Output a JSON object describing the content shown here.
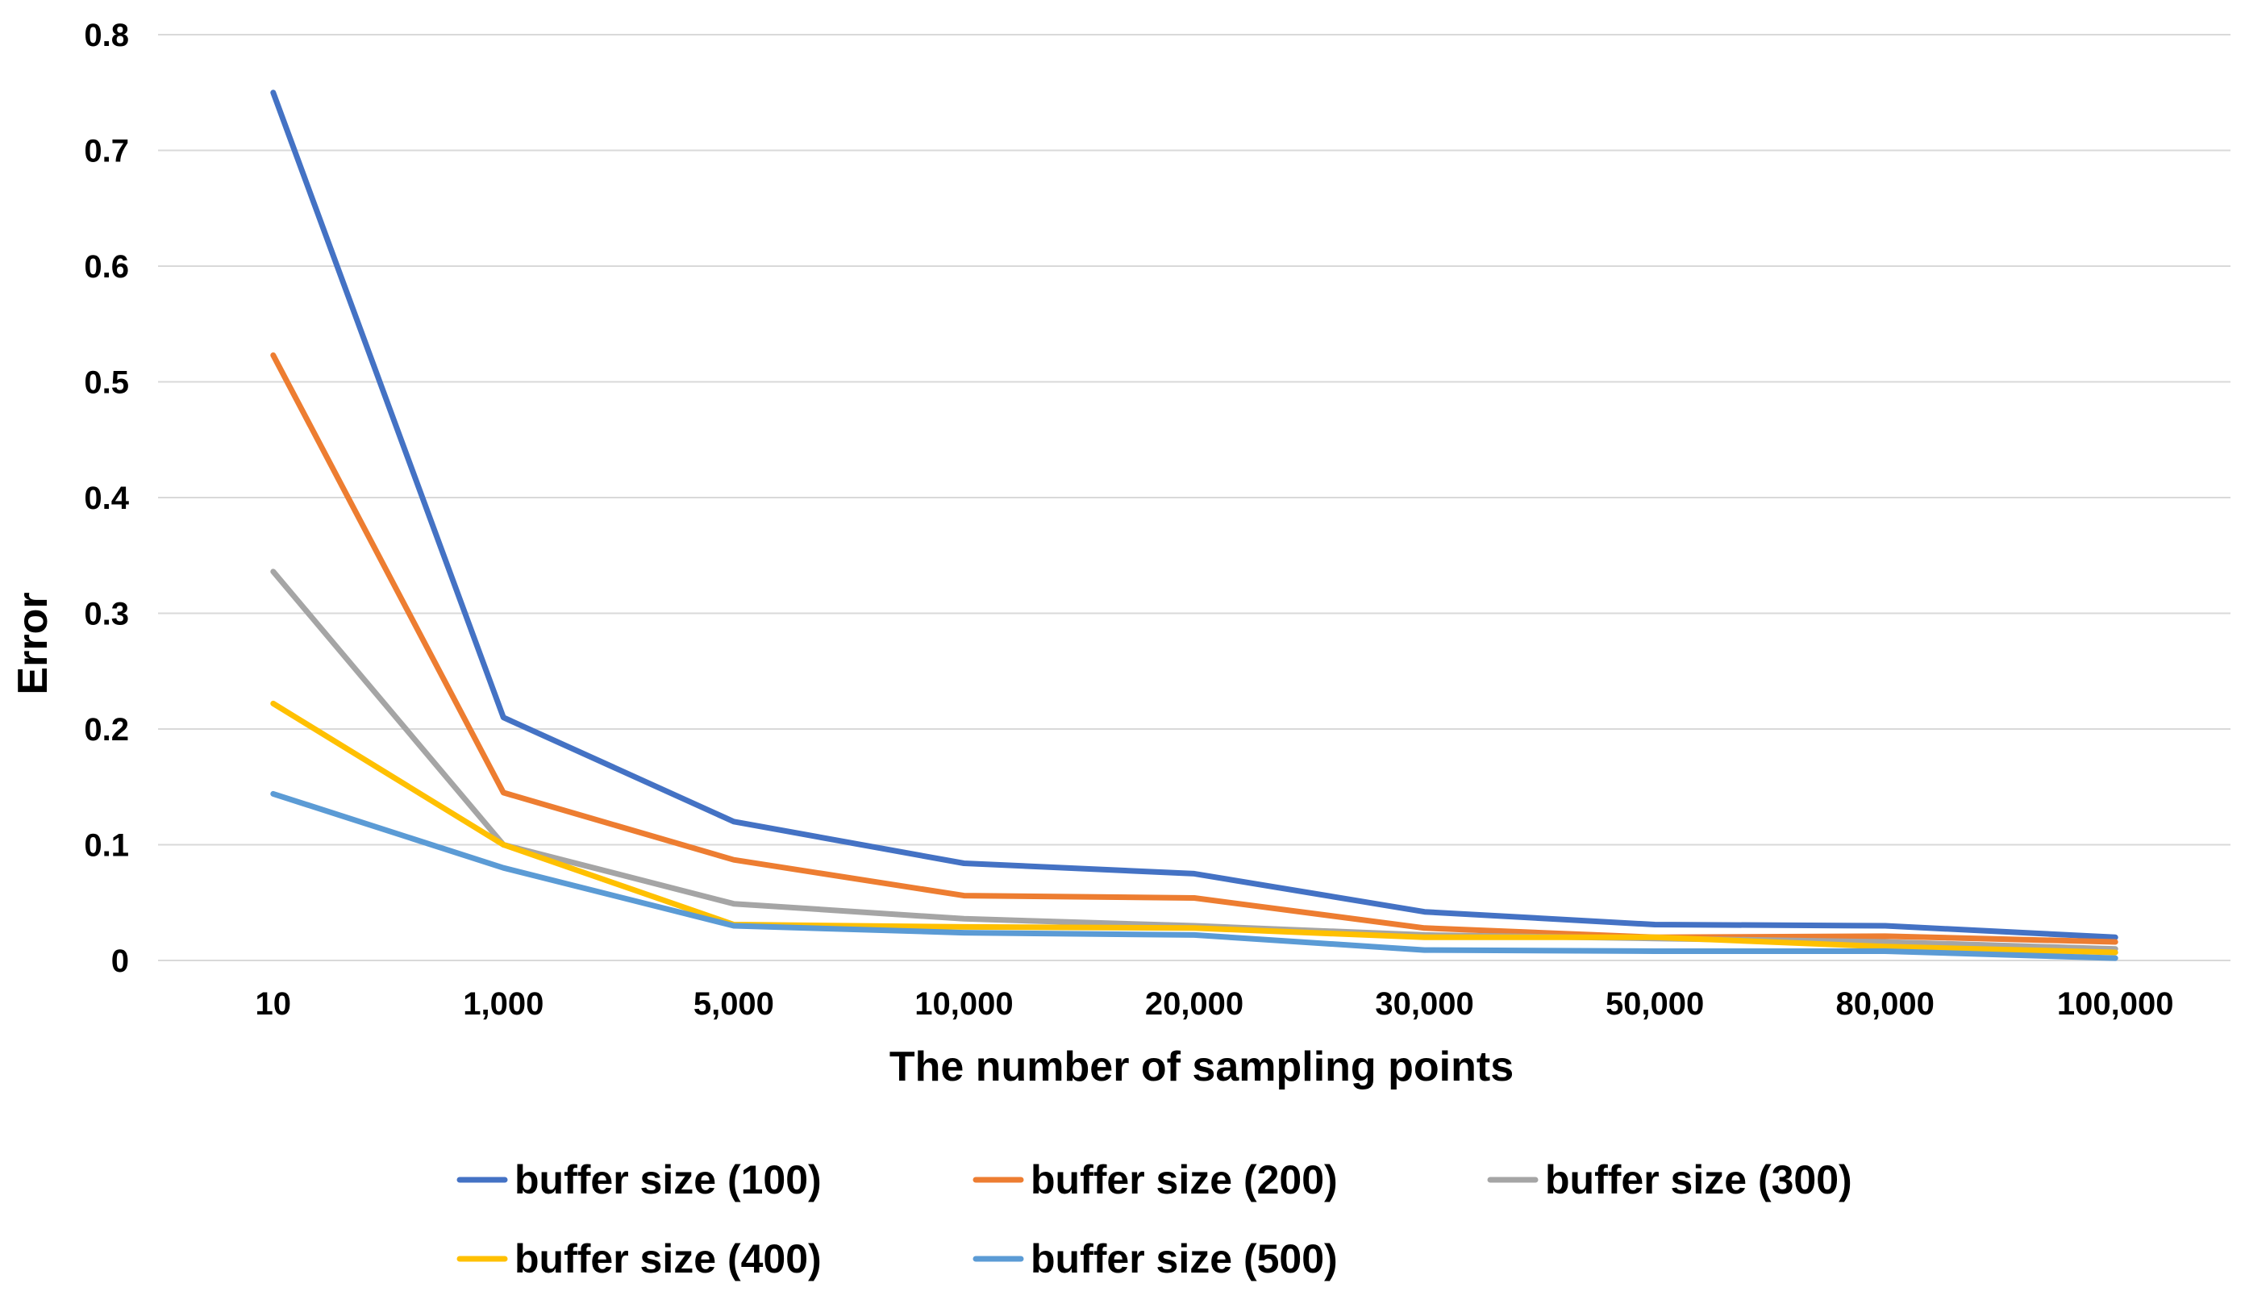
{
  "chart_data": {
    "type": "line",
    "title": "",
    "xlabel": "The number of sampling points",
    "ylabel": "Error",
    "categories": [
      "10",
      "1,000",
      "5,000",
      "10,000",
      "20,000",
      "30,000",
      "50,000",
      "80,000",
      "100,000"
    ],
    "ylim": [
      0,
      0.8
    ],
    "yticks": [
      0,
      0.1,
      0.2,
      0.3,
      0.4,
      0.5,
      0.6,
      0.7,
      0.8
    ],
    "ytick_labels": [
      "0",
      "0.1",
      "0.2",
      "0.3",
      "0.4",
      "0.5",
      "0.6",
      "0.7",
      "0.8"
    ],
    "grid": true,
    "legend_position": "bottom",
    "series": [
      {
        "name": "buffer size (100)",
        "color": "#4472C4",
        "values": [
          0.75,
          0.21,
          0.12,
          0.084,
          0.075,
          0.042,
          0.031,
          0.03,
          0.02
        ]
      },
      {
        "name": "buffer size (200)",
        "color": "#ED7D31",
        "values": [
          0.523,
          0.145,
          0.087,
          0.056,
          0.054,
          0.028,
          0.02,
          0.021,
          0.016
        ]
      },
      {
        "name": "buffer size (300)",
        "color": "#A5A5A5",
        "values": [
          0.336,
          0.1,
          0.049,
          0.036,
          0.03,
          0.022,
          0.019,
          0.016,
          0.01
        ]
      },
      {
        "name": "buffer size (400)",
        "color": "#FFC000",
        "values": [
          0.222,
          0.1,
          0.031,
          0.029,
          0.028,
          0.02,
          0.02,
          0.012,
          0.007
        ]
      },
      {
        "name": "buffer size (500)",
        "color": "#5B9BD5",
        "values": [
          0.144,
          0.08,
          0.03,
          0.024,
          0.022,
          0.009,
          0.008,
          0.008,
          0.002
        ]
      }
    ]
  }
}
